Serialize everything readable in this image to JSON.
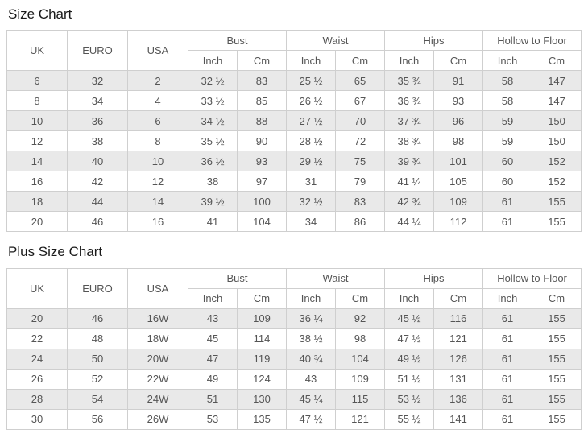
{
  "colors": {
    "row_alt": "#e9e9e9",
    "row_base": "#ffffff",
    "border": "#cfcfcf",
    "text": "#555555",
    "title": "#1a1a1a"
  },
  "tables": [
    {
      "title": "Size Chart",
      "plain_columns": [
        "UK",
        "EURO",
        "USA"
      ],
      "group_columns": [
        "Bust",
        "Waist",
        "Hips",
        "Hollow to Floor"
      ],
      "sub_columns": [
        "Inch",
        "Cm"
      ],
      "rows": [
        [
          "6",
          "32",
          "2",
          "32 ½",
          "83",
          "25 ½",
          "65",
          "35 ¾",
          "91",
          "58",
          "147"
        ],
        [
          "8",
          "34",
          "4",
          "33 ½",
          "85",
          "26 ½",
          "67",
          "36 ¾",
          "93",
          "58",
          "147"
        ],
        [
          "10",
          "36",
          "6",
          "34 ½",
          "88",
          "27 ½",
          "70",
          "37 ¾",
          "96",
          "59",
          "150"
        ],
        [
          "12",
          "38",
          "8",
          "35 ½",
          "90",
          "28 ½",
          "72",
          "38 ¾",
          "98",
          "59",
          "150"
        ],
        [
          "14",
          "40",
          "10",
          "36 ½",
          "93",
          "29 ½",
          "75",
          "39 ¾",
          "101",
          "60",
          "152"
        ],
        [
          "16",
          "42",
          "12",
          "38",
          "97",
          "31",
          "79",
          "41 ¼",
          "105",
          "60",
          "152"
        ],
        [
          "18",
          "44",
          "14",
          "39 ½",
          "100",
          "32 ½",
          "83",
          "42 ¾",
          "109",
          "61",
          "155"
        ],
        [
          "20",
          "46",
          "16",
          "41",
          "104",
          "34",
          "86",
          "44 ¼",
          "112",
          "61",
          "155"
        ]
      ]
    },
    {
      "title": "Plus Size Chart",
      "plain_columns": [
        "UK",
        "EURO",
        "USA"
      ],
      "group_columns": [
        "Bust",
        "Waist",
        "Hips",
        "Hollow to Floor"
      ],
      "sub_columns": [
        "Inch",
        "Cm"
      ],
      "rows": [
        [
          "20",
          "46",
          "16W",
          "43",
          "109",
          "36 ¼",
          "92",
          "45 ½",
          "116",
          "61",
          "155"
        ],
        [
          "22",
          "48",
          "18W",
          "45",
          "114",
          "38 ½",
          "98",
          "47 ½",
          "121",
          "61",
          "155"
        ],
        [
          "24",
          "50",
          "20W",
          "47",
          "119",
          "40 ¾",
          "104",
          "49 ½",
          "126",
          "61",
          "155"
        ],
        [
          "26",
          "52",
          "22W",
          "49",
          "124",
          "43",
          "109",
          "51 ½",
          "131",
          "61",
          "155"
        ],
        [
          "28",
          "54",
          "24W",
          "51",
          "130",
          "45 ¼",
          "115",
          "53 ½",
          "136",
          "61",
          "155"
        ],
        [
          "30",
          "56",
          "26W",
          "53",
          "135",
          "47 ½",
          "121",
          "55 ½",
          "141",
          "61",
          "155"
        ]
      ]
    }
  ]
}
